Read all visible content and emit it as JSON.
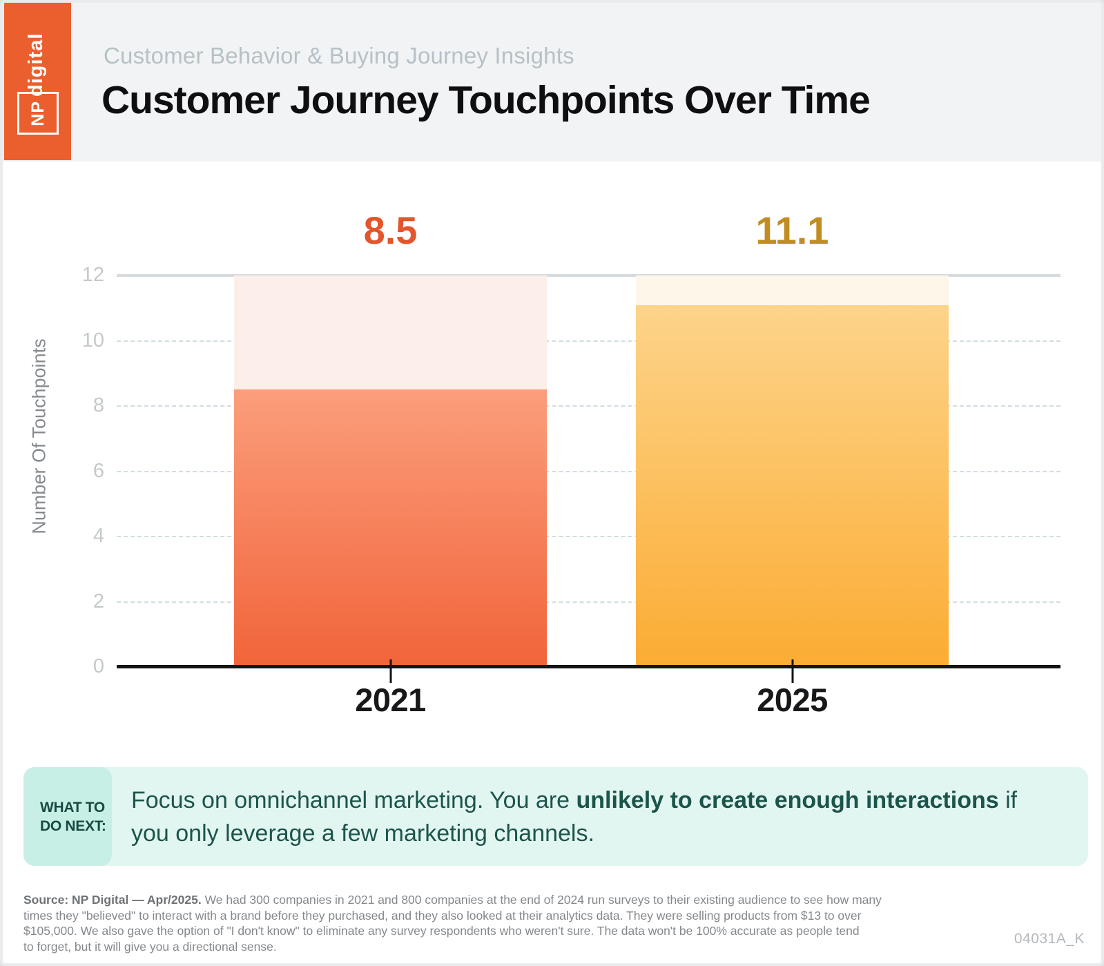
{
  "logo": {
    "np": "NP",
    "digital": "digital"
  },
  "header": {
    "eyebrow": "Customer Behavior & Buying Journey Insights",
    "title": "Customer Journey Touchpoints Over Time"
  },
  "chart_data": {
    "type": "bar",
    "title": "Customer Journey Touchpoints Over Time",
    "categories": [
      "2021",
      "2025"
    ],
    "values": [
      8.5,
      11.1
    ],
    "value_labels": [
      "8.5",
      "11.1"
    ],
    "xlabel": "",
    "ylabel": "Number Of Touchpoints",
    "ylim": [
      0,
      12
    ],
    "yticks": [
      12,
      10,
      8,
      6,
      4,
      2,
      0
    ],
    "grid": "horizontal dashed lines at 2,4,6,8,10; solid light line at 12; solid black baseline at 0",
    "legend": "none",
    "series_style": [
      {
        "name": "2021",
        "track_color": "#FCEFE9",
        "gradient_top": "#FB9E7C",
        "gradient_bottom": "#F1643A",
        "value_color": "#E3552A"
      },
      {
        "name": "2025",
        "track_color": "#FEF7E9",
        "gradient_top": "#FDD48A",
        "gradient_bottom": "#FBAC33",
        "value_color": "#C18D22"
      }
    ]
  },
  "callout": {
    "label_line1": "WHAT TO",
    "label_line2": "DO NEXT:",
    "line1_before": "Focus on omnichannel marketing. You are ",
    "line1_bold": "unlikely to create enough interactions",
    "line1_after": " if",
    "line2": "you only leverage a few marketing channels."
  },
  "footer": {
    "source_line1_bold": "Source: NP Digital — Apr/2025.",
    "source_line1_rest": " We had 300 companies in 2021 and 800 companies at the end of 2024 run surveys to their existing audience to see how many",
    "source_line2": "times they \"believed\" to interact with a brand before they purchased, and they also looked at their analytics data. They were selling products from $13 to over",
    "source_line3": "$105,000. We also gave the option of \"I don't know\" to eliminate any survey respondents who weren't sure. The data won't be 100% accurate as people tend",
    "source_line4": "to forget, but it will give you a directional sense.",
    "code": "04031A_K"
  },
  "colors": {
    "brand_orange": "#EB5E2E",
    "header_bg": "#F1F3F5",
    "eyebrow_text": "#B7C1C6",
    "title_text": "#0F0F11",
    "gridline_solid": "#D8DBDD",
    "gridline_dashed": "#CFDEE1",
    "axis_tick_text": "#C4C9CC",
    "y_axis_title_text": "#878B8F",
    "baseline": "#141414",
    "mint_banner_bg": "#E2F6F1",
    "mint_label_bg": "#C8EFE6",
    "teal_text": "#1C544B",
    "source_text": "#84888C",
    "code_text": "#B3B8BC"
  }
}
